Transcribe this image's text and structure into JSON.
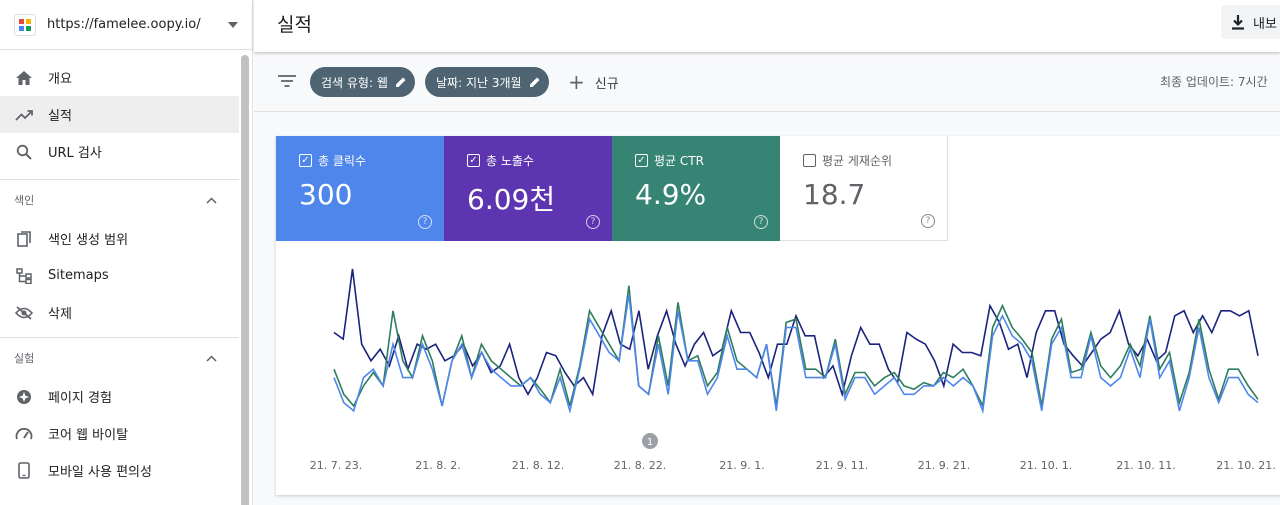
{
  "property": {
    "url": "https://famelee.oopy.io/"
  },
  "nav": [
    {
      "label": "개요",
      "icon": "home-icon"
    },
    {
      "label": "실적",
      "icon": "trending-up-icon",
      "active": true
    },
    {
      "label": "URL 검사",
      "icon": "search-icon"
    }
  ],
  "sections": [
    {
      "title": "색인",
      "items": [
        {
          "label": "색인 생성 범위",
          "icon": "coverage-icon"
        },
        {
          "label": "Sitemaps",
          "icon": "sitemap-icon"
        },
        {
          "label": "삭제",
          "icon": "eye-off-icon"
        }
      ]
    },
    {
      "title": "실험",
      "items": [
        {
          "label": "페이지 경험",
          "icon": "page-experience-icon"
        },
        {
          "label": "코어 웹 바이탈",
          "icon": "speed-icon"
        },
        {
          "label": "모바일 사용 편의성",
          "icon": "mobile-icon"
        }
      ]
    }
  ],
  "header": {
    "title": "실적",
    "export_label": "내보"
  },
  "filters": {
    "chips": [
      "검색 유형: 웹",
      "날짜: 지난 3개월"
    ],
    "new_label": "신규",
    "updated": "최종 업데이트: 7시간"
  },
  "metrics": [
    {
      "label": "총 클릭수",
      "value": "300",
      "checked": true
    },
    {
      "label": "총 노출수",
      "value": "6.09천",
      "checked": true
    },
    {
      "label": "평균 CTR",
      "value": "4.9%",
      "checked": true
    },
    {
      "label": "평균 게재순위",
      "value": "18.7",
      "checked": false
    }
  ],
  "colors": {
    "clicks": "#4e86eb",
    "impressions": "#1a237e",
    "ctr": "#2e7d5b"
  },
  "chart_data": {
    "type": "line",
    "x_labels": [
      "21. 7. 23.",
      "21. 8. 2.",
      "21. 8. 12.",
      "21. 8. 22.",
      "21. 9. 1.",
      "21. 9. 11.",
      "21. 9. 21.",
      "21. 10. 1.",
      "21. 10. 11.",
      "21. 10. 21."
    ],
    "annotation": "1",
    "series": [
      {
        "name": "impressions",
        "values": [
          62,
          58,
          100,
          55,
          45,
          52,
          42,
          60,
          40,
          55,
          52,
          55,
          45,
          48,
          55,
          42,
          50,
          38,
          42,
          55,
          35,
          25,
          35,
          50,
          48,
          38,
          30,
          35,
          25,
          60,
          75,
          55,
          52,
          75,
          40,
          60,
          75,
          55,
          42,
          55,
          62,
          48,
          52,
          75,
          62,
          62,
          50,
          35,
          55,
          55,
          72,
          60,
          60,
          35,
          42,
          25,
          48,
          65,
          55,
          55,
          40,
          32,
          62,
          58,
          55,
          45,
          30,
          55,
          50,
          50,
          48,
          78,
          68,
          52,
          55,
          35,
          62,
          75,
          75,
          55,
          48,
          42,
          50,
          58,
          62,
          75,
          55,
          48,
          58,
          45,
          50,
          72,
          75,
          62,
          72,
          62,
          75,
          75,
          72,
          75,
          48
        ]
      },
      {
        "name": "ctr",
        "values": [
          40,
          25,
          18,
          30,
          38,
          30,
          75,
          45,
          35,
          60,
          45,
          18,
          45,
          60,
          35,
          55,
          45,
          40,
          35,
          30,
          35,
          28,
          20,
          40,
          18,
          42,
          75,
          65,
          55,
          45,
          90,
          30,
          25,
          60,
          30,
          80,
          45,
          48,
          30,
          38,
          65,
          45,
          40,
          35,
          55,
          18,
          68,
          70,
          40,
          40,
          35,
          58,
          25,
          38,
          38,
          30,
          35,
          38,
          30,
          28,
          32,
          30,
          38,
          35,
          40,
          30,
          18,
          65,
          78,
          65,
          58,
          50,
          18,
          58,
          70,
          38,
          40,
          62,
          42,
          35,
          42,
          55,
          42,
          72,
          40,
          50,
          20,
          38,
          70,
          40,
          22,
          40,
          40,
          30,
          22
        ]
      },
      {
        "name": "clicks",
        "values": [
          35,
          20,
          15,
          35,
          40,
          30,
          55,
          35,
          35,
          55,
          40,
          18,
          45,
          55,
          35,
          50,
          40,
          35,
          30,
          30,
          35,
          25,
          20,
          35,
          15,
          40,
          70,
          60,
          50,
          45,
          85,
          30,
          25,
          55,
          25,
          75,
          45,
          45,
          25,
          35,
          60,
          40,
          40,
          35,
          55,
          15,
          65,
          65,
          35,
          35,
          35,
          55,
          22,
          35,
          35,
          25,
          30,
          35,
          25,
          25,
          30,
          30,
          35,
          30,
          35,
          30,
          15,
          60,
          72,
          60,
          55,
          45,
          15,
          55,
          65,
          35,
          35,
          60,
          35,
          30,
          35,
          52,
          35,
          70,
          35,
          45,
          15,
          35,
          65,
          35,
          20,
          35,
          35,
          25,
          20
        ]
      }
    ]
  }
}
